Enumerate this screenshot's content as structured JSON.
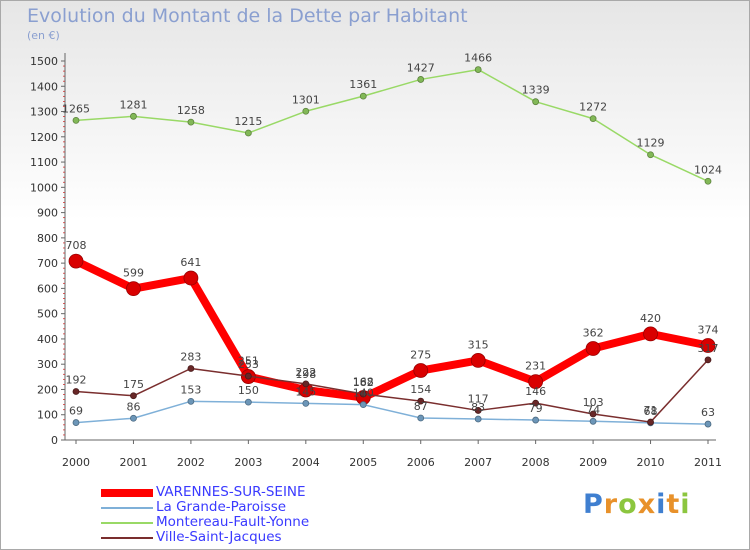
{
  "chart_data": {
    "type": "line",
    "title": "Evolution du Montant de la Dette par Habitant",
    "subtitle": "(en €)",
    "categories": [
      "2000",
      "2001",
      "2002",
      "2003",
      "2004",
      "2005",
      "2006",
      "2007",
      "2008",
      "2009",
      "2010",
      "2011"
    ],
    "y_ticks": [
      0,
      100,
      200,
      300,
      400,
      500,
      600,
      700,
      800,
      900,
      1000,
      1100,
      1200,
      1300,
      1400,
      1500
    ],
    "ylim": [
      0,
      1500
    ],
    "grid": false,
    "legend_position": "bottom-left",
    "series": [
      {
        "name": "VARENNES-SUR-SEINE",
        "color": "#ff0000",
        "width": 8,
        "marker": 7,
        "values": [
          708,
          599,
          641,
          251,
          198,
          168,
          275,
          315,
          231,
          362,
          420,
          374
        ]
      },
      {
        "name": "La Grande-Paroisse",
        "color": "#7fb0d8",
        "width": 1.5,
        "marker": 3,
        "values": [
          69,
          86,
          153,
          150,
          145,
          140,
          87,
          83,
          79,
          74,
          68,
          63
        ]
      },
      {
        "name": "Montereau-Fault-Yonne",
        "color": "#99d966",
        "width": 1.5,
        "marker": 3,
        "values": [
          1265,
          1281,
          1258,
          1215,
          1301,
          1361,
          1427,
          1466,
          1339,
          1272,
          1129,
          1024
        ]
      },
      {
        "name": "Ville-Saint-Jacques",
        "color": "#7a2e2e",
        "width": 1.5,
        "marker": 3,
        "values": [
          192,
          175,
          283,
          253,
          222,
          182,
          154,
          117,
          146,
          103,
          71,
          317
        ]
      }
    ]
  },
  "logo": {
    "letters": [
      "P",
      "r",
      "o",
      "x",
      "i",
      "t",
      "i"
    ],
    "colors": [
      "#3f7fd0",
      "#e8912a",
      "#8cc63f",
      "#e8912a",
      "#3f7fd0",
      "#e8912a",
      "#8cc63f"
    ]
  }
}
